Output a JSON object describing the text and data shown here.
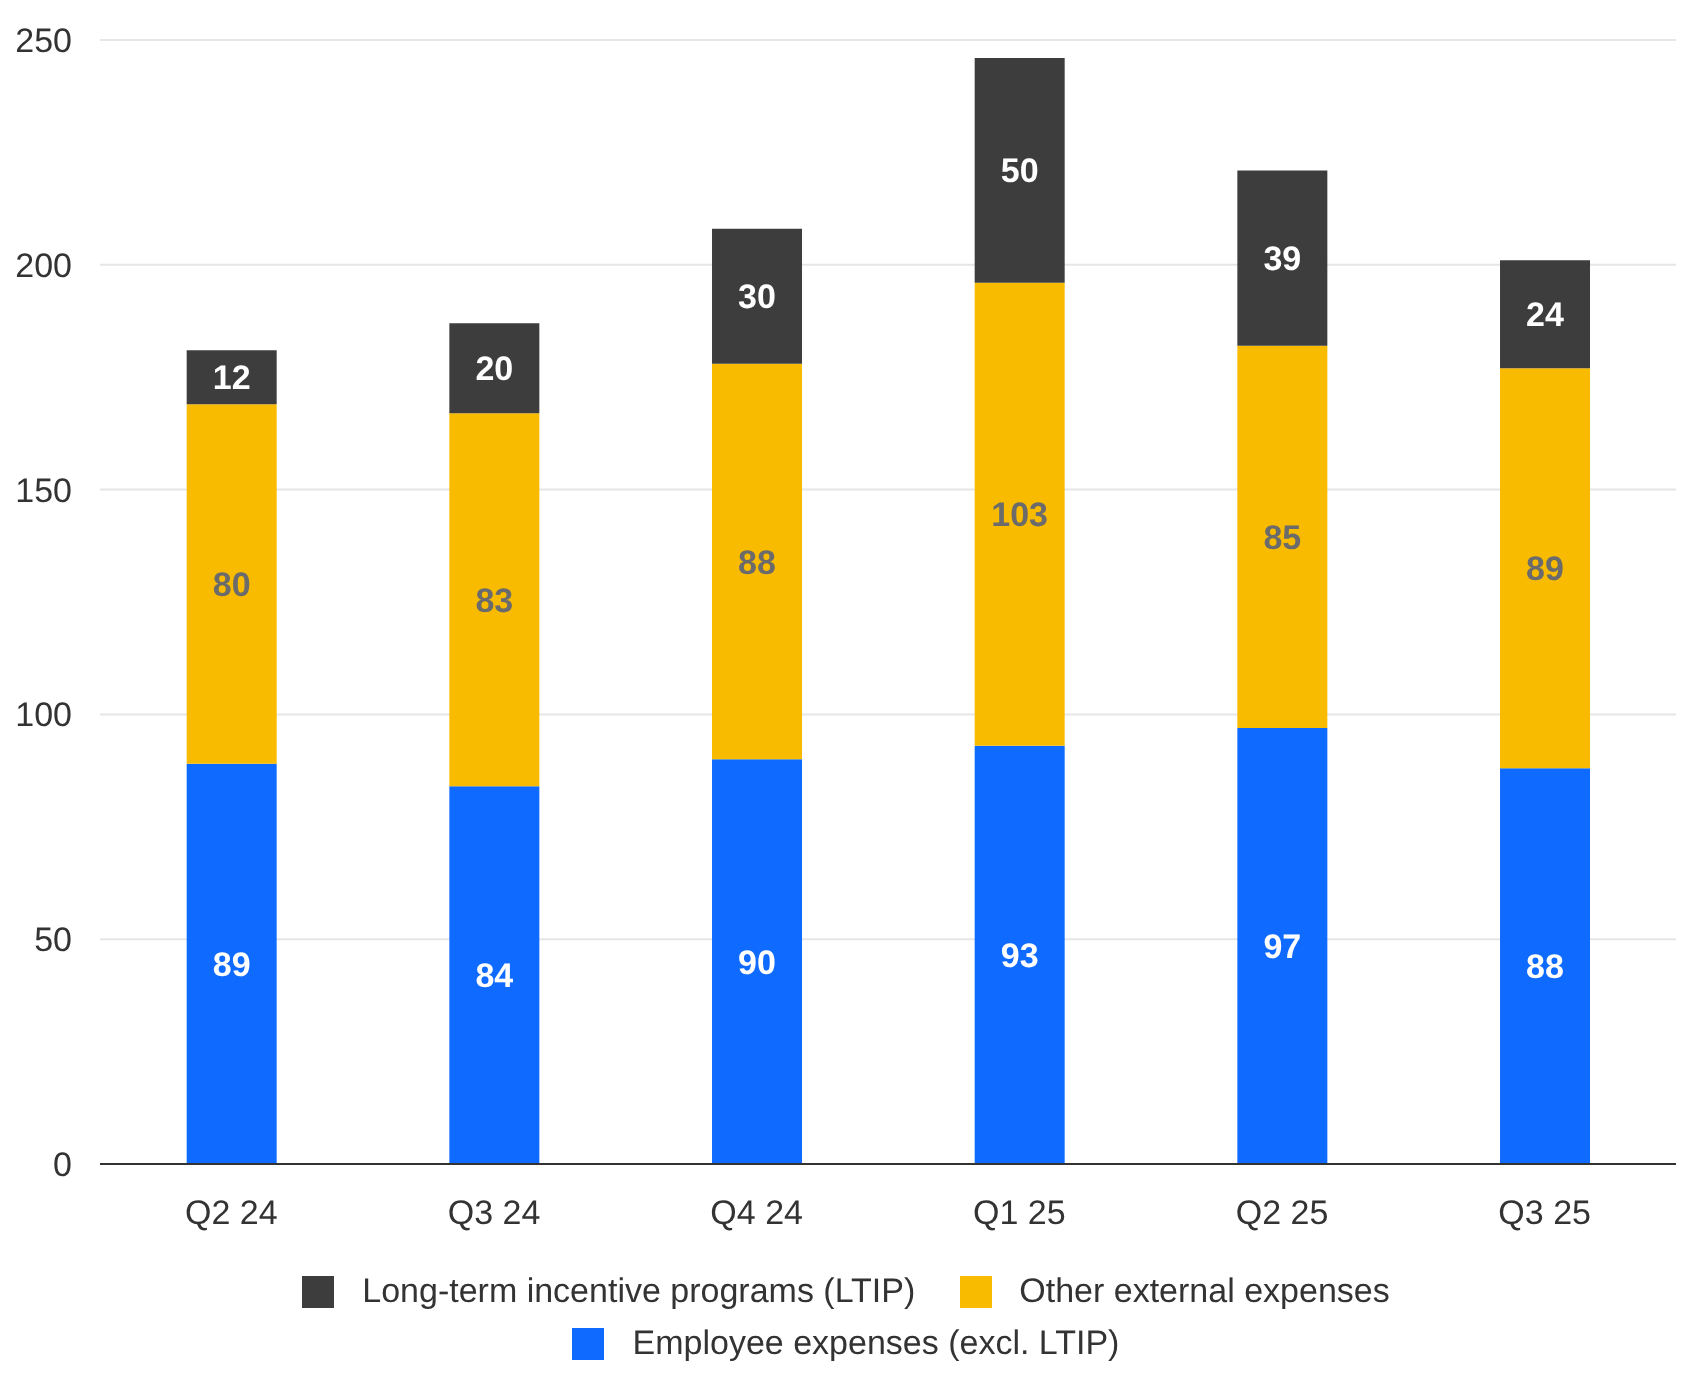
{
  "chart_data": {
    "type": "bar",
    "stacked": true,
    "categories": [
      "Q2 24",
      "Q3 24",
      "Q4 24",
      "Q1 25",
      "Q2 25",
      "Q3 25"
    ],
    "series": [
      {
        "name": "Employee expenses (excl. LTIP)",
        "color": "#0f6bff",
        "values": [
          89,
          84,
          90,
          93,
          97,
          88
        ]
      },
      {
        "name": "Other external expenses",
        "color": "#f9bb00",
        "values": [
          80,
          83,
          88,
          103,
          85,
          89
        ]
      },
      {
        "name": "Long-term incentive programs (LTIP)",
        "color": "#3d3d3d",
        "values": [
          12,
          20,
          30,
          50,
          39,
          24
        ]
      }
    ],
    "ylim": [
      0,
      250
    ],
    "yticks": [
      0,
      50,
      100,
      150,
      200,
      250
    ],
    "grid": "y",
    "legend": "bottom",
    "data_labels": true
  }
}
